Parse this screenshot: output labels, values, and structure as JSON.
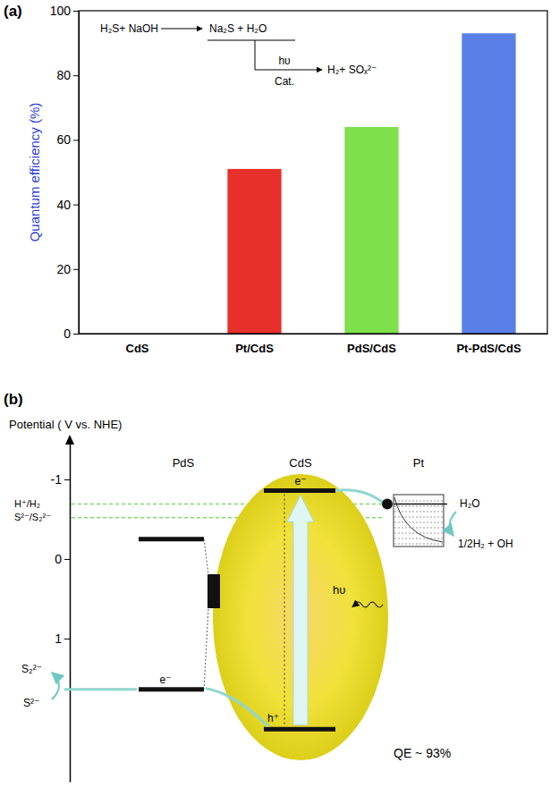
{
  "chart_data": {
    "type": "bar",
    "panel_label": "(a)",
    "y_label": "Quantum efficiency (%)",
    "annotations": [
      "H₂S+ NaOH",
      "Na₂S + H₂O",
      "hυ",
      "Cat.",
      "H₂+ SOₓ²⁻"
    ],
    "categories": [
      "CdS",
      "Pt/CdS",
      "PdS/CdS",
      "Pt-PdS/CdS"
    ],
    "values": [
      0,
      51,
      64,
      93
    ],
    "colors": [
      "#e8302a",
      "#e8302a",
      "#7ee04a",
      "#5a7fe6"
    ],
    "ylim": [
      0,
      100
    ],
    "yticks": [
      0,
      20,
      40,
      60,
      80,
      100
    ]
  },
  "diagram": {
    "panel_label": "(b)",
    "axis_title": "Potential ( V vs. NHE)",
    "ylim": [
      -1.45,
      2.8
    ],
    "yticks": [
      -1,
      0,
      1
    ],
    "redox": [
      {
        "label": "H⁺/H₂",
        "value": -0.69
      },
      {
        "label": "S²⁻/S₂²⁻",
        "value": -0.52
      }
    ],
    "materials": [
      {
        "name": "PdS",
        "cb": -0.25,
        "vb": 1.64
      },
      {
        "name": "CdS",
        "cb": -0.86,
        "vb": 2.14
      },
      {
        "name": "Pt",
        "level": -0.69
      }
    ],
    "labels": {
      "cb_electron": "e⁻",
      "pds_electron": "e⁻",
      "hole": "h⁺",
      "light": "hυ",
      "water": "H₂O",
      "hydrogen": "1/2H₂ + OH",
      "disulfide": "S₂²⁻",
      "sulfide": "S²⁻",
      "quantum_efficiency": "QE ~ 93%"
    }
  }
}
